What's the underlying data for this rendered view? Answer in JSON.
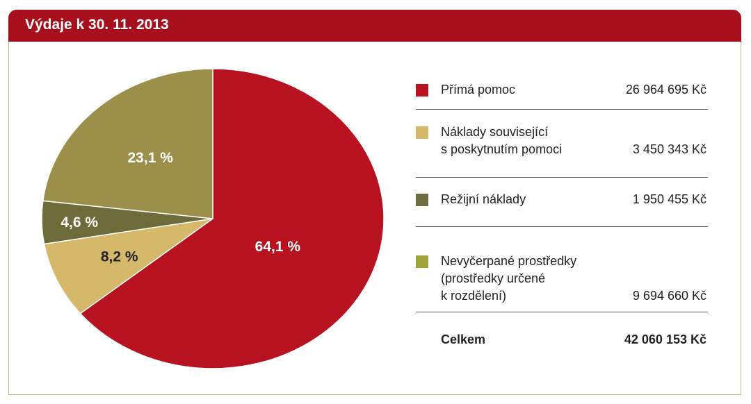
{
  "header": {
    "title": "Výdaje k 30. 11. 2013"
  },
  "colors": {
    "header_bg": "#a80f1d",
    "prima": "#b8111f",
    "naklady": "#d5b86a",
    "rezijni": "#6e6b3a",
    "nevycerpane": "#9c8f4a",
    "nevycerpane_swatch": "#9ea43a"
  },
  "legend": {
    "items": [
      {
        "label_lines": [
          "Přímá pomoc"
        ],
        "value": "26 964 695 Kč"
      },
      {
        "label_lines": [
          "Náklady související",
          "s poskytnutím pomoci"
        ],
        "value": "3 450 343 Kč"
      },
      {
        "label_lines": [
          "Režijní náklady"
        ],
        "value": "1 950 455 Kč"
      },
      {
        "label_lines": [
          "Nevyčerpané prostředky",
          "(prostředky určené",
          "k rozdělení)"
        ],
        "value": "9 694 660 Kč"
      }
    ],
    "total": {
      "label": "Celkem",
      "value": "42 060 153 Kč"
    }
  },
  "chart_data": {
    "type": "pie",
    "title": "Výdaje k 30. 11. 2013",
    "categories": [
      "Přímá pomoc",
      "Náklady související s poskytnutím pomoci",
      "Režijní náklady",
      "Nevyčerpané prostředky (prostředky určené k rozdělení)"
    ],
    "values": [
      64.1,
      8.2,
      4.6,
      23.1
    ],
    "labels": [
      "64,1 %",
      "8,2 %",
      "4,6 %",
      "23,1 %"
    ],
    "amounts": [
      "26 964 695 Kč",
      "3 450 343 Kč",
      "1 950 455 Kč",
      "9 694 660 Kč"
    ],
    "start": "12 o'clock",
    "direction": "clockwise",
    "legend_position": "right"
  }
}
